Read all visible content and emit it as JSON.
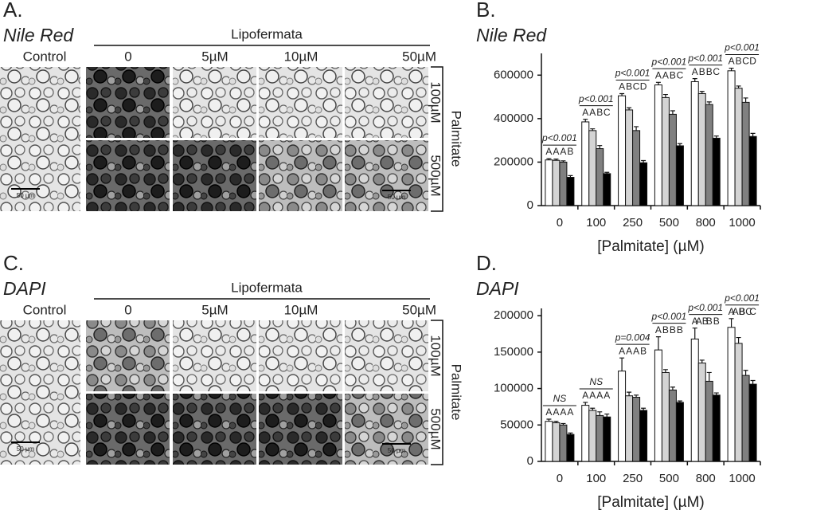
{
  "panels": [
    {
      "label": "A.",
      "stain": "Nile Red",
      "treatment": "Lipofermata",
      "control": "Control",
      "doses": [
        "0",
        "5µM",
        "10µM",
        "50µM"
      ],
      "palmitate": "Palmitate",
      "palmitate_doses": [
        "100µM",
        "500µM"
      ],
      "scale_bar": "50 µm"
    },
    {
      "label": "C.",
      "stain": "DAPI",
      "treatment": "Lipofermata",
      "control": "Control",
      "doses": [
        "0",
        "5µM",
        "10µM",
        "50µM"
      ],
      "palmitate": "Palmitate",
      "palmitate_doses": [
        "100µM",
        "500µM"
      ],
      "scale_bar": "50 µm"
    }
  ],
  "chart_data": [
    {
      "type": "bar",
      "panel_label": "B.",
      "title": "Nile Red",
      "categories": [
        "0",
        "100",
        "250",
        "500",
        "800",
        "1000"
      ],
      "xlabel": "[Palmitate] (µM)",
      "ylim": [
        0,
        700000
      ],
      "yticks": [
        0,
        200000,
        400000,
        600000
      ],
      "series": [
        {
          "color": "#ffffff",
          "values": [
            210000,
            385000,
            505000,
            555000,
            570000,
            620000
          ],
          "errors": [
            6000,
            12000,
            10000,
            12000,
            14000,
            12000
          ]
        },
        {
          "color": "#d4d4d4",
          "values": [
            208000,
            345000,
            440000,
            497000,
            515000,
            540000
          ],
          "errors": [
            6000,
            8000,
            10000,
            14000,
            10000,
            10000
          ]
        },
        {
          "color": "#808080",
          "values": [
            200000,
            262000,
            345000,
            420000,
            465000,
            475000
          ],
          "errors": [
            6000,
            14000,
            18000,
            16000,
            12000,
            20000
          ]
        },
        {
          "color": "#000000",
          "values": [
            130000,
            147000,
            197000,
            275000,
            310000,
            318000
          ],
          "errors": [
            8000,
            6000,
            10000,
            10000,
            10000,
            14000
          ]
        }
      ],
      "annotations": [
        {
          "p": "p<0.001",
          "letters": [
            "A",
            "A",
            "A",
            "B"
          ]
        },
        {
          "p": "p<0.001",
          "letters": [
            "A",
            "A",
            "B",
            "C"
          ]
        },
        {
          "p": "p<0.001",
          "letters": [
            "A",
            "B",
            "C",
            "D"
          ]
        },
        {
          "p": "p<0.001",
          "letters": [
            "A",
            "A",
            "B",
            "C"
          ]
        },
        {
          "p": "p<0.001",
          "letters": [
            "A",
            "B",
            "B",
            "C"
          ]
        },
        {
          "p": "p<0.001",
          "letters": [
            "A",
            "B",
            "C",
            "D"
          ]
        }
      ]
    },
    {
      "type": "bar",
      "panel_label": "D.",
      "title": "DAPI",
      "categories": [
        "0",
        "100",
        "250",
        "500",
        "800",
        "1000"
      ],
      "xlabel": "[Palmitate] (µM)",
      "ylim": [
        0,
        210000
      ],
      "yticks": [
        0,
        50000,
        100000,
        150000,
        200000
      ],
      "series": [
        {
          "color": "#ffffff",
          "values": [
            55000,
            77000,
            124000,
            153000,
            168000,
            184000
          ],
          "errors": [
            3000,
            4000,
            18000,
            18000,
            15000,
            12000
          ]
        },
        {
          "color": "#d4d4d4",
          "values": [
            53000,
            70000,
            90000,
            122000,
            135000,
            162000
          ],
          "errors": [
            2000,
            3000,
            5000,
            4000,
            4000,
            8000
          ]
        },
        {
          "color": "#808080",
          "values": [
            50000,
            63000,
            88000,
            98000,
            110000,
            118000
          ],
          "errors": [
            2000,
            5000,
            3000,
            4000,
            12000,
            7000
          ]
        },
        {
          "color": "#000000",
          "values": [
            37000,
            61000,
            70000,
            81000,
            91000,
            106000
          ],
          "errors": [
            2000,
            4000,
            3000,
            2000,
            3000,
            5000
          ]
        }
      ],
      "annotations": [
        {
          "p": "NS",
          "letters": [
            "A",
            "A",
            "A",
            "A"
          ]
        },
        {
          "p": "NS",
          "letters": [
            "A",
            "A",
            "A",
            "A"
          ]
        },
        {
          "p": "p=0.004",
          "letters": [
            "A",
            "A",
            "A",
            "B"
          ]
        },
        {
          "p": "p<0.001",
          "letters": [
            "A",
            "B",
            "B",
            "B"
          ]
        },
        {
          "p": "p<0.001",
          "letters": [
            "A",
            "AB",
            "B",
            "B"
          ]
        },
        {
          "p": "p<0.001",
          "letters": [
            "A",
            "AB",
            "BC",
            "C"
          ]
        }
      ]
    }
  ]
}
